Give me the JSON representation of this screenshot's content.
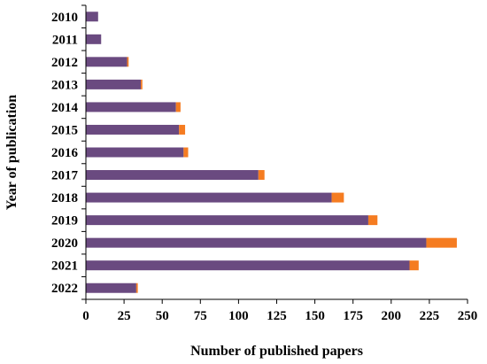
{
  "chart_data": {
    "type": "bar",
    "orientation": "horizontal",
    "stacked": true,
    "categories": [
      "2010",
      "2011",
      "2012",
      "2013",
      "2014",
      "2015",
      "2016",
      "2017",
      "2018",
      "2019",
      "2020",
      "2021",
      "2022"
    ],
    "series": [
      {
        "values": [
          8,
          10,
          27,
          36,
          59,
          61,
          64,
          113,
          161,
          185,
          223,
          212,
          33
        ],
        "color": "#6a4a80"
      },
      {
        "values": [
          0,
          0,
          1,
          1,
          3,
          4,
          3,
          4,
          8,
          6,
          20,
          6,
          1
        ],
        "color": "#f57c21"
      }
    ],
    "xlabel": "Number of published papers",
    "ylabel": "Year of publication",
    "xlim": [
      0,
      250
    ],
    "xticks": [
      "0",
      "25",
      "50",
      "75",
      "100",
      "125",
      "150",
      "175",
      "200",
      "225",
      "250"
    ],
    "grid": false,
    "legend": "none"
  }
}
